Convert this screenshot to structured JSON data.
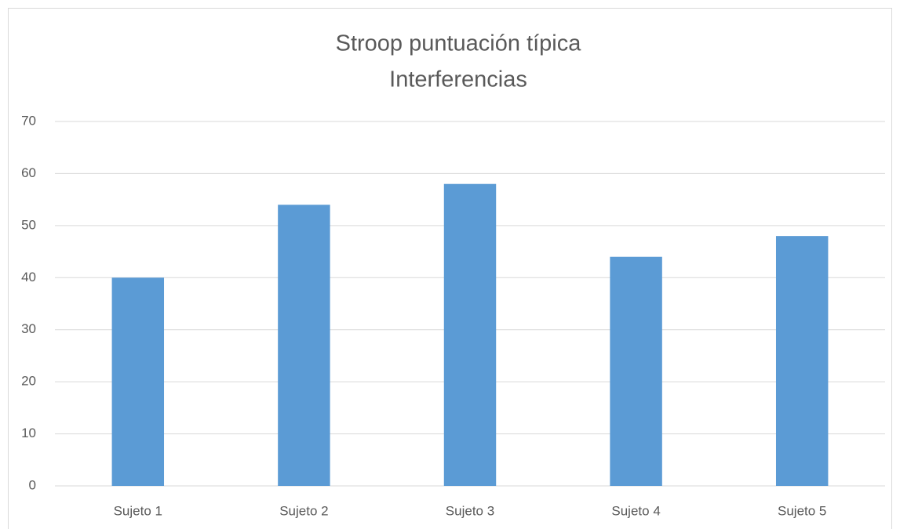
{
  "chart_data": {
    "type": "bar",
    "title": [
      "Stroop puntuación típica",
      "Interferencias"
    ],
    "categories": [
      "Sujeto 1",
      "Sujeto 2",
      "Sujeto 3",
      "Sujeto 4",
      "Sujeto 5"
    ],
    "values": [
      40,
      54,
      58,
      44,
      48
    ],
    "color": "#5b9bd5",
    "ylim": [
      0,
      70
    ],
    "yticks": [
      0,
      10,
      20,
      30,
      40,
      50,
      60,
      70
    ],
    "grid": true
  }
}
